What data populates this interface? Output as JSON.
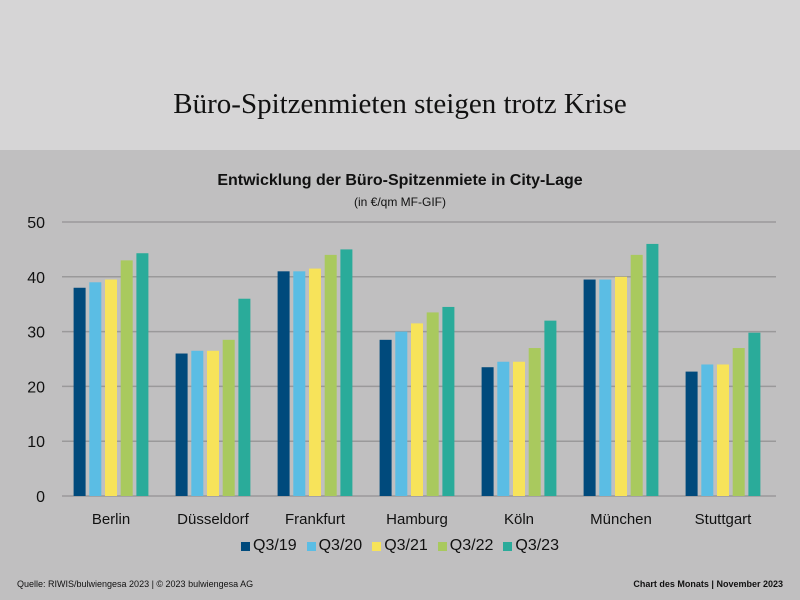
{
  "header": {
    "title": "Büro-Spitzenmieten steigen trotz Krise"
  },
  "footer": {
    "source": "Quelle: RIWIS/bulwiengesa 2023 | © 2023 bulwiengesa AG",
    "right": "Chart des Monats | November 2023"
  },
  "chart_data": {
    "type": "bar",
    "title": "Entwicklung der Büro-Spitzenmiete in City-Lage",
    "subtitle": "(in €/qm MF-GIF)",
    "xlabel": "",
    "ylabel": "",
    "ylim": [
      0,
      50
    ],
    "yticks": [
      0,
      10,
      20,
      30,
      40,
      50
    ],
    "grid": true,
    "legend_position": "bottom",
    "categories": [
      "Berlin",
      "Düsseldorf",
      "Frankfurt",
      "Hamburg",
      "Köln",
      "München",
      "Stuttgart"
    ],
    "series": [
      {
        "name": "Q3/19",
        "color": "#004a7c",
        "values": [
          38,
          26,
          41,
          28.5,
          23.5,
          39.5,
          22.7
        ]
      },
      {
        "name": "Q3/20",
        "color": "#5bbde4",
        "values": [
          39,
          26.5,
          41,
          30,
          24.5,
          39.5,
          24
        ]
      },
      {
        "name": "Q3/21",
        "color": "#f7e35a",
        "values": [
          39.5,
          26.5,
          41.5,
          31.5,
          24.5,
          40,
          24
        ]
      },
      {
        "name": "Q3/22",
        "color": "#a9c95e",
        "values": [
          43,
          28.5,
          44,
          33.5,
          27,
          44,
          27
        ]
      },
      {
        "name": "Q3/23",
        "color": "#2aab9a",
        "values": [
          44.3,
          36,
          45,
          34.5,
          32,
          46,
          29.8
        ]
      }
    ]
  }
}
